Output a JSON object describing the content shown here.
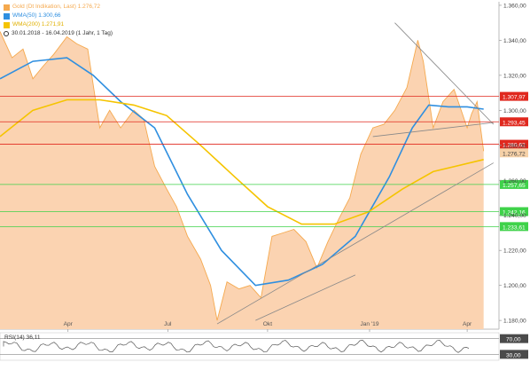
{
  "legend": {
    "gold": "Gold (Dt Indikation, Last) 1.276,72",
    "wma50": "WMA(50) 1.300,66",
    "wma200": "WMA(200) 1.271,91",
    "period": "30.01.2018 - 16.04.2019 (1 Jahr, 1 Tag)"
  },
  "colors": {
    "price_fill": "#fbd3b1",
    "price_line": "#f5a94e",
    "wma50": "#2f8fe0",
    "wma200": "#f5c400",
    "red_level": "#e0281e",
    "green_level": "#3fd24a",
    "trendline": "#888888",
    "last_label": "#f6d1a8"
  },
  "rsi": {
    "label": "RSI(14) 36,11",
    "value": 36.11,
    "tick_labels": [
      "70,00",
      "30,00"
    ]
  },
  "chart_data": {
    "type": "area",
    "title": "",
    "y_ticks": [
      "1.360,00",
      "1.340,00",
      "1.320,00",
      "1.300,00",
      "1.280,00",
      "1.260,00",
      "1.240,00",
      "1.220,00",
      "1.200,00",
      "1.180,00"
    ],
    "x_ticks": [
      "Apr",
      "Jul",
      "Okt",
      "Jan '19",
      "Apr"
    ],
    "ylim": [
      1175,
      1362
    ],
    "x_range": [
      "2018-01-30",
      "2019-04-16"
    ],
    "series": [
      {
        "name": "Gold (Dt Indikation, Last)",
        "kind": "price",
        "x": [
          "2018-01-30",
          "2018-02-10",
          "2018-02-20",
          "2018-03-01",
          "2018-03-10",
          "2018-03-20",
          "2018-04-01",
          "2018-04-10",
          "2018-04-20",
          "2018-05-01",
          "2018-05-10",
          "2018-05-20",
          "2018-06-01",
          "2018-06-10",
          "2018-06-20",
          "2018-07-01",
          "2018-07-10",
          "2018-07-20",
          "2018-08-01",
          "2018-08-10",
          "2018-08-16",
          "2018-08-25",
          "2018-09-05",
          "2018-09-15",
          "2018-09-25",
          "2018-10-05",
          "2018-10-15",
          "2018-10-25",
          "2018-11-05",
          "2018-11-15",
          "2018-11-25",
          "2018-12-05",
          "2018-12-15",
          "2018-12-25",
          "2019-01-05",
          "2019-01-15",
          "2019-01-25",
          "2019-02-05",
          "2019-02-15",
          "2019-02-20",
          "2019-03-01",
          "2019-03-10",
          "2019-03-20",
          "2019-04-01",
          "2019-04-05",
          "2019-04-10",
          "2019-04-16"
        ],
        "y": [
          1345,
          1330,
          1335,
          1318,
          1325,
          1332,
          1342,
          1338,
          1335,
          1290,
          1300,
          1290,
          1300,
          1295,
          1268,
          1255,
          1245,
          1228,
          1215,
          1200,
          1180,
          1202,
          1198,
          1200,
          1193,
          1228,
          1230,
          1232,
          1225,
          1210,
          1225,
          1238,
          1250,
          1275,
          1290,
          1292,
          1300,
          1313,
          1340,
          1328,
          1290,
          1305,
          1312,
          1290,
          1298,
          1305,
          1276.72
        ]
      },
      {
        "name": "WMA(50)",
        "kind": "wma50",
        "x": [
          "2018-01-30",
          "2018-03-01",
          "2018-04-01",
          "2018-04-25",
          "2018-05-20",
          "2018-06-20",
          "2018-07-20",
          "2018-08-20",
          "2018-09-20",
          "2018-10-20",
          "2018-11-20",
          "2018-12-20",
          "2019-01-20",
          "2019-02-10",
          "2019-02-25",
          "2019-03-15",
          "2019-04-01",
          "2019-04-16"
        ],
        "y": [
          1318,
          1328,
          1330,
          1320,
          1305,
          1290,
          1252,
          1220,
          1200,
          1203,
          1212,
          1228,
          1262,
          1290,
          1303,
          1302,
          1302,
          1300.66
        ]
      },
      {
        "name": "WMA(200)",
        "kind": "wma200",
        "x": [
          "2018-01-30",
          "2018-03-01",
          "2018-04-01",
          "2018-05-01",
          "2018-06-01",
          "2018-07-01",
          "2018-08-01",
          "2018-09-01",
          "2018-10-01",
          "2018-11-01",
          "2018-12-01",
          "2019-01-01",
          "2019-02-01",
          "2019-03-01",
          "2019-04-16"
        ],
        "y": [
          1285,
          1300,
          1306,
          1306,
          1303,
          1297,
          1280,
          1262,
          1245,
          1235,
          1235,
          1242,
          1255,
          1265,
          1271.91
        ]
      }
    ],
    "levels": [
      {
        "value": 1307.97,
        "label": "1.307,97",
        "kind": "red"
      },
      {
        "value": 1293.45,
        "label": "1.293,45",
        "kind": "red"
      },
      {
        "value": 1280.62,
        "label": "1.280,62",
        "kind": "red"
      },
      {
        "value": 1257.65,
        "label": "1.257,65",
        "kind": "green"
      },
      {
        "value": 1242.16,
        "label": "1.242,16",
        "kind": "green"
      },
      {
        "value": 1233.61,
        "label": "1.233,61",
        "kind": "green"
      }
    ],
    "last_price": {
      "value": 1276.72,
      "label": "1.276,72"
    },
    "trendlines": [
      {
        "from": [
          "2018-08-16",
          1178
        ],
        "to": [
          "2019-04-25",
          1270
        ]
      },
      {
        "from": [
          "2018-09-20",
          1180
        ],
        "to": [
          "2018-12-20",
          1206
        ]
      },
      {
        "from": [
          "2019-01-05",
          1285
        ],
        "to": [
          "2019-04-25",
          1293
        ]
      },
      {
        "from": [
          "2019-01-25",
          1350
        ],
        "to": [
          "2019-04-25",
          1292
        ]
      }
    ]
  }
}
